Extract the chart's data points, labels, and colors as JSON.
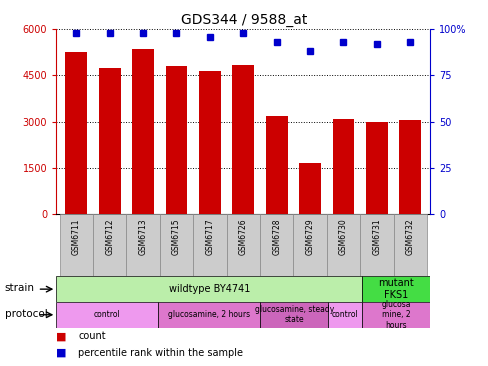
{
  "title": "GDS344 / 9588_at",
  "samples": [
    "GSM6711",
    "GSM6712",
    "GSM6713",
    "GSM6715",
    "GSM6717",
    "GSM6726",
    "GSM6728",
    "GSM6729",
    "GSM6730",
    "GSM6731",
    "GSM6732"
  ],
  "counts": [
    5250,
    4750,
    5350,
    4800,
    4650,
    4850,
    3200,
    1650,
    3100,
    3000,
    3050
  ],
  "percentiles": [
    98,
    98,
    98,
    98,
    96,
    98,
    93,
    88,
    93,
    92,
    93
  ],
  "ylim_left": [
    0,
    6000
  ],
  "ylim_right": [
    0,
    100
  ],
  "yticks_left": [
    0,
    1500,
    3000,
    4500,
    6000
  ],
  "yticks_right": [
    0,
    25,
    50,
    75,
    100
  ],
  "ytick_right_labels": [
    "0",
    "25",
    "50",
    "75",
    "100%"
  ],
  "bar_color": "#cc0000",
  "dot_color": "#0000cc",
  "strain_labels": [
    {
      "text": "wildtype BY4741",
      "start": 0,
      "end": 9,
      "color": "#bbeeaa"
    },
    {
      "text": "mutant\nFKS1",
      "start": 9,
      "end": 11,
      "color": "#44dd44"
    }
  ],
  "protocol_labels": [
    {
      "text": "control",
      "start": 0,
      "end": 3,
      "color": "#ee99ee"
    },
    {
      "text": "glucosamine, 2 hours",
      "start": 3,
      "end": 6,
      "color": "#dd77cc"
    },
    {
      "text": "glucosamine, steady\nstate",
      "start": 6,
      "end": 8,
      "color": "#cc66bb"
    },
    {
      "text": "control",
      "start": 8,
      "end": 9,
      "color": "#ee99ee"
    },
    {
      "text": "glucosa\nmine, 2\nhours",
      "start": 9,
      "end": 11,
      "color": "#dd77cc"
    }
  ],
  "legend_count_color": "#cc0000",
  "legend_pct_color": "#0000cc",
  "legend_count_label": "count",
  "legend_pct_label": "percentile rank within the sample",
  "grid_color": "black",
  "bg_color": "white",
  "sample_box_color": "#cccccc",
  "left_tick_color": "#cc0000",
  "right_tick_color": "#0000cc"
}
